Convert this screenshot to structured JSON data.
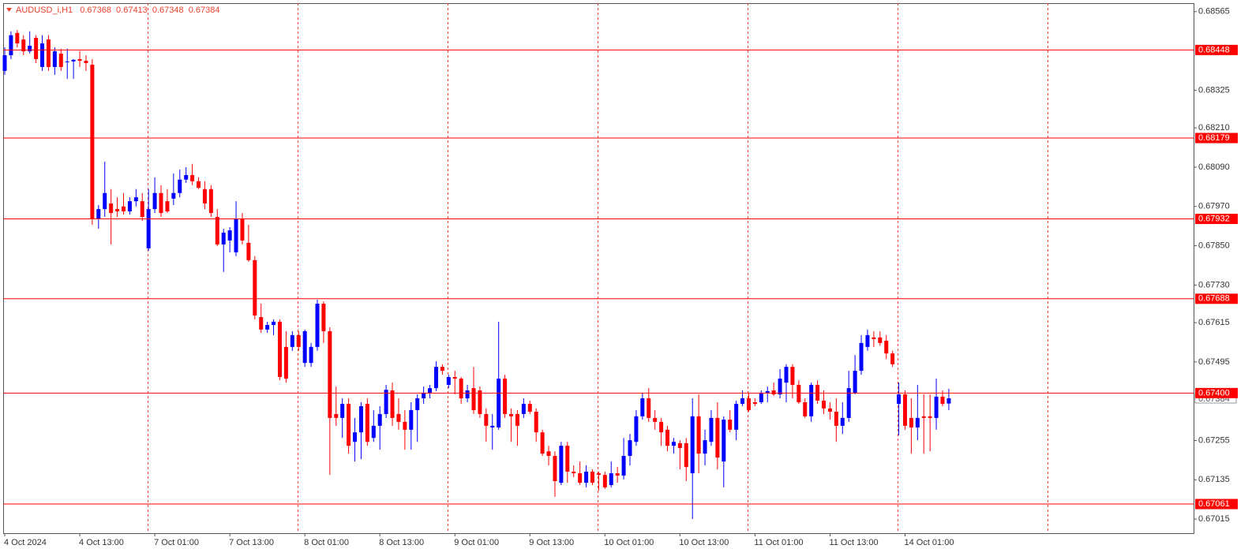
{
  "chart_data": {
    "type": "candlestick",
    "title": "AUDUSD_i,H1",
    "categories": [
      "4 Oct 2024",
      null,
      null,
      null,
      null,
      null,
      null,
      null,
      null,
      null,
      null,
      null,
      "4 Oct 13:00",
      null,
      null,
      null,
      null,
      null,
      null,
      null,
      null,
      null,
      null,
      null,
      "7 Oct 01:00",
      null,
      null,
      null,
      null,
      null,
      null,
      null,
      null,
      null,
      null,
      null,
      "7 Oct 13:00",
      null,
      null,
      null,
      null,
      null,
      null,
      null,
      null,
      null,
      null,
      null,
      "8 Oct 01:00",
      null,
      null,
      null,
      null,
      null,
      null,
      null,
      null,
      null,
      null,
      null,
      "8 Oct 13:00",
      null,
      null,
      null,
      null,
      null,
      null,
      null,
      null,
      null,
      null,
      null,
      "9 Oct 01:00",
      null,
      null,
      null,
      null,
      null,
      null,
      null,
      null,
      null,
      null,
      null,
      "9 Oct 13:00",
      null,
      null,
      null,
      null,
      null,
      null,
      null,
      null,
      null,
      null,
      null,
      "10 Oct 01:00",
      null,
      null,
      null,
      null,
      null,
      null,
      null,
      null,
      null,
      null,
      null,
      "10 Oct 13:00",
      null,
      null,
      null,
      null,
      null,
      null,
      null,
      null,
      null,
      null,
      null,
      "11 Oct 01:00",
      null,
      null,
      null,
      null,
      null,
      null,
      null,
      null,
      null,
      null,
      null,
      "11 Oct 13:00",
      null,
      null,
      null,
      null,
      null,
      null,
      null,
      null,
      null,
      null,
      null,
      "14 Oct 01:00",
      null,
      null,
      null,
      null,
      null,
      null,
      null
    ],
    "open": [
      0.68384,
      0.68432,
      0.685,
      0.6848,
      0.68444,
      0.68485,
      0.68396,
      0.6848,
      0.68396,
      0.68437,
      0.68413,
      0.68413,
      0.6842,
      0.68415,
      0.68403,
      0.67931,
      0.67962,
      0.67979,
      0.67962,
      0.6797,
      0.67955,
      0.67986,
      0.67986,
      0.67842,
      0.67962,
      0.68011,
      0.67986,
      0.67994,
      0.68011,
      0.68052,
      0.68066,
      0.68047,
      0.68023,
      0.68023,
      0.67938,
      0.67854,
      0.67866,
      0.6783,
      0.67931,
      0.67859,
      0.67806,
      0.67632,
      0.67594,
      0.67608,
      0.67618,
      0.67541,
      0.67541,
      0.67577,
      0.67492,
      0.67492,
      0.67541,
      0.67673,
      0.67589,
      0.67336,
      0.67324,
      0.67367,
      0.67251,
      0.6728,
      0.67367,
      0.67263,
      0.673,
      0.67336,
      0.67408,
      0.67336,
      0.67312,
      0.67288,
      0.67348,
      0.67384,
      0.67401,
      0.67415,
      0.6748,
      0.67425,
      0.67449,
      0.67444,
      0.67384,
      0.67415,
      0.67408,
      0.67336,
      0.67295,
      0.67295,
      0.67444,
      0.67336,
      0.67336,
      0.67336,
      0.67367,
      0.67343,
      0.6728,
      0.67222,
      0.67208,
      0.67126,
      0.67239,
      0.6716,
      0.67155,
      0.67126,
      0.6716,
      0.67155,
      0.6715,
      0.67119,
      0.67155,
      0.67148,
      0.67208,
      0.67251,
      0.67329,
      0.67384,
      0.67324,
      0.67312,
      0.67288,
      0.67239,
      0.67247,
      0.67247,
      0.67155,
      0.67329,
      0.67215,
      0.67251,
      0.67324,
      0.67191,
      0.67319,
      0.67288,
      0.67367,
      0.67384,
      0.67372,
      0.67372,
      0.67401,
      0.67408,
      0.67396,
      0.67432,
      0.6748,
      0.67425,
      0.67372,
      0.67329,
      0.67425,
      0.67377,
      0.67353,
      0.67343,
      0.673,
      0.67324,
      0.67401,
      0.67468,
      0.67541,
      0.6757,
      0.6757,
      0.6756,
      0.67521,
      0.67367,
      0.67396,
      0.67324,
      0.67295,
      0.67329,
      0.67329,
      0.67324,
      0.67389,
      0.67368
    ],
    "high": [
      0.68456,
      0.68505,
      0.68509,
      0.68493,
      0.68505,
      0.68493,
      0.68493,
      0.68493,
      0.68456,
      0.68452,
      0.68452,
      0.6842,
      0.68444,
      0.68432,
      0.6842,
      0.67974,
      0.68107,
      0.68023,
      0.67998,
      0.68011,
      0.67998,
      0.68023,
      0.68011,
      0.68023,
      0.68059,
      0.68035,
      0.68023,
      0.68071,
      0.68083,
      0.6809,
      0.681,
      0.68059,
      0.68047,
      0.68035,
      0.67962,
      0.67902,
      0.67907,
      0.67986,
      0.6795,
      0.67914,
      0.67818,
      0.67673,
      0.67618,
      0.67625,
      0.67625,
      0.67589,
      0.67589,
      0.67589,
      0.67594,
      0.67553,
      0.67685,
      0.6768,
      0.67601,
      0.6742,
      0.67384,
      0.67384,
      0.67324,
      0.67372,
      0.67384,
      0.67348,
      0.6736,
      0.67425,
      0.67432,
      0.67384,
      0.67348,
      0.67372,
      0.67396,
      0.6742,
      0.67425,
      0.67497,
      0.67488,
      0.67456,
      0.67468,
      0.67449,
      0.67425,
      0.6748,
      0.6742,
      0.67353,
      0.67336,
      0.67618,
      0.67456,
      0.67353,
      0.67348,
      0.67384,
      0.67377,
      0.67353,
      0.67288,
      0.67239,
      0.67222,
      0.67251,
      0.67251,
      0.67179,
      0.67191,
      0.67179,
      0.67167,
      0.6716,
      0.6716,
      0.67191,
      0.67174,
      0.67263,
      0.67275,
      0.67348,
      0.67401,
      0.67415,
      0.67348,
      0.67324,
      0.673,
      0.67263,
      0.67256,
      0.67263,
      0.67384,
      0.67396,
      0.67288,
      0.67348,
      0.67372,
      0.67329,
      0.67348,
      0.67377,
      0.67408,
      0.67401,
      0.67384,
      0.67408,
      0.6742,
      0.67432,
      0.67473,
      0.67488,
      0.67488,
      0.67439,
      0.67384,
      0.67432,
      0.67439,
      0.67408,
      0.67372,
      0.67384,
      0.67372,
      0.67468,
      0.67516,
      0.67577,
      0.67594,
      0.67589,
      0.67589,
      0.67577,
      0.67529,
      0.67432,
      0.67408,
      0.67384,
      0.67425,
      0.67396,
      0.67396,
      0.67444,
      0.67408,
      0.67413
    ],
    "low": [
      0.68372,
      0.6842,
      0.68456,
      0.68432,
      0.68437,
      0.68408,
      0.68384,
      0.68384,
      0.68372,
      0.68384,
      0.6836,
      0.6836,
      0.68396,
      0.68384,
      0.67914,
      0.67902,
      0.67938,
      0.67854,
      0.67938,
      0.67945,
      0.67945,
      0.6797,
      0.67926,
      0.67835,
      0.6795,
      0.67938,
      0.6795,
      0.67974,
      0.67998,
      0.68042,
      0.68035,
      0.68023,
      0.67962,
      0.67938,
      0.67849,
      0.6777,
      0.6783,
      0.67818,
      0.67854,
      0.67801,
      0.67625,
      0.67584,
      0.67584,
      0.67577,
      0.67439,
      0.67432,
      0.67529,
      0.67529,
      0.6748,
      0.6748,
      0.67529,
      0.67553,
      0.6715,
      0.673,
      0.67263,
      0.67215,
      0.67191,
      0.67198,
      0.67239,
      0.67251,
      0.67227,
      0.67324,
      0.673,
      0.67288,
      0.67227,
      0.67227,
      0.67251,
      0.67367,
      0.67384,
      0.67406,
      0.67456,
      0.67415,
      0.67396,
      0.67367,
      0.67372,
      0.67336,
      0.67324,
      0.67251,
      0.67227,
      0.67288,
      0.67324,
      0.67251,
      0.67239,
      0.67324,
      0.67336,
      0.67251,
      0.67208,
      0.67179,
      0.67083,
      0.67119,
      0.67126,
      0.67143,
      0.67119,
      0.67112,
      0.67119,
      0.67102,
      0.67107,
      0.67112,
      0.67126,
      0.67136,
      0.67179,
      0.67239,
      0.67319,
      0.67312,
      0.67288,
      0.67239,
      0.67222,
      0.67215,
      0.67167,
      0.67131,
      0.67015,
      0.67155,
      0.67179,
      0.67239,
      0.67167,
      0.67112,
      0.6728,
      0.67256,
      0.6736,
      0.67343,
      0.6736,
      0.67367,
      0.67372,
      0.67391,
      0.67384,
      0.67372,
      0.67384,
      0.67367,
      0.67324,
      0.67312,
      0.67367,
      0.67336,
      0.67319,
      0.67251,
      0.67275,
      0.67312,
      0.67396,
      0.67456,
      0.67529,
      0.67541,
      0.67545,
      0.67504,
      0.6748,
      0.67271,
      0.67288,
      0.67215,
      0.67256,
      0.67215,
      0.67222,
      0.67288,
      0.6736,
      0.67348
    ],
    "close": [
      0.68432,
      0.68493,
      0.68468,
      0.68444,
      0.68461,
      0.6842,
      0.68468,
      0.68396,
      0.68444,
      0.68396,
      0.68413,
      0.68418,
      0.68415,
      0.68408,
      0.67931,
      0.67962,
      0.68011,
      0.6795,
      0.67955,
      0.67955,
      0.67986,
      0.67998,
      0.67938,
      0.67962,
      0.68011,
      0.6795,
      0.67955,
      0.68011,
      0.68052,
      0.68066,
      0.68047,
      0.68027,
      0.67979,
      0.6795,
      0.67854,
      0.6789,
      0.67897,
      0.67931,
      0.67866,
      0.67806,
      0.67637,
      0.67594,
      0.67608,
      0.67618,
      0.67449,
      0.67444,
      0.67577,
      0.67541,
      0.67589,
      0.67541,
      0.67673,
      0.67589,
      0.67324,
      0.67324,
      0.67367,
      0.67239,
      0.6728,
      0.6736,
      0.67251,
      0.673,
      0.67336,
      0.6741,
      0.67324,
      0.67312,
      0.67288,
      0.67348,
      0.67384,
      0.67401,
      0.67415,
      0.6748,
      0.67468,
      0.67449,
      0.67444,
      0.67384,
      0.67408,
      0.67348,
      0.67336,
      0.673,
      0.673,
      0.67444,
      0.67336,
      0.67329,
      0.673,
      0.67367,
      0.67343,
      0.6728,
      0.67215,
      0.67208,
      0.67131,
      0.67239,
      0.6716,
      0.67155,
      0.67126,
      0.6716,
      0.67126,
      0.6715,
      0.67112,
      0.67155,
      0.67148,
      0.67208,
      0.67256,
      0.67329,
      0.67384,
      0.67324,
      0.67312,
      0.6728,
      0.67239,
      0.67251,
      0.67232,
      0.67174,
      0.67329,
      0.67215,
      0.67256,
      0.67324,
      0.67203,
      0.67319,
      0.67288,
      0.67367,
      0.67384,
      0.67348,
      0.67367,
      0.67401,
      0.67406,
      0.67396,
      0.67444,
      0.6748,
      0.67425,
      0.67372,
      0.67329,
      0.67425,
      0.67377,
      0.67353,
      0.67343,
      0.673,
      0.67324,
      0.67415,
      0.67468,
      0.67553,
      0.67577,
      0.67565,
      0.67553,
      0.67521,
      0.67488,
      0.67396,
      0.673,
      0.67295,
      0.67324,
      0.67324,
      0.67324,
      0.67389,
      0.67367,
      0.67384
    ],
    "up_color": "#0000ff",
    "down_color": "#ff0000",
    "ylim": [
      0.66972,
      0.68591
    ],
    "yticks": [
      0.68565,
      0.68325,
      {
        "value": 0.6821,
        "label": "0.68210"
      },
      {
        "value": 0.6809,
        "label": "0.68090"
      },
      {
        "value": 0.6797,
        "label": "0.67970"
      },
      {
        "value": 0.6785,
        "label": "0.67850"
      },
      {
        "value": 0.6773,
        "label": "0.67730"
      },
      0.67615,
      0.67495,
      0.67255,
      0.67135,
      0.67015
    ],
    "levels": [
      0.68448,
      0.68179,
      0.67932,
      0.67688,
      {
        "value": 0.674,
        "label": "0.67400"
      },
      0.67061
    ],
    "level_color": "#ff0000"
  }
}
